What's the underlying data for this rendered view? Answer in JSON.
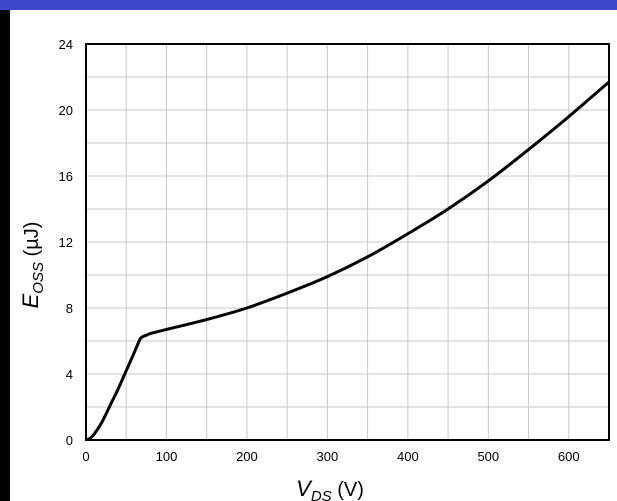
{
  "colors": {
    "header_band": "#3F48CC",
    "left_edge": "#000000",
    "grid": "#C8C8C8",
    "curve": "#000000",
    "frame": "#000000"
  },
  "chart_data": {
    "type": "line",
    "title": "",
    "xlabel": {
      "main": "V",
      "sub": "DS",
      "unit": " (V)"
    },
    "ylabel": {
      "main": "E",
      "sub": "OSS",
      "unit": " (µJ)"
    },
    "xlim": [
      0,
      650
    ],
    "ylim": [
      0,
      24
    ],
    "x_ticks": [
      0,
      100,
      200,
      300,
      400,
      500,
      600
    ],
    "y_ticks": [
      0,
      4,
      8,
      12,
      16,
      20,
      24
    ],
    "grid": true,
    "minor_grid_x_step": 50,
    "minor_grid_y_step": 2,
    "series": [
      {
        "x": [
          0,
          5,
          10,
          20,
          30,
          40,
          50,
          60,
          67,
          70,
          75,
          80,
          100,
          150,
          200,
          250,
          300,
          350,
          400,
          450,
          500,
          550,
          600,
          650
        ],
        "y": [
          0,
          0.1,
          0.35,
          1.1,
          2.1,
          3.1,
          4.2,
          5.3,
          6.1,
          6.25,
          6.35,
          6.45,
          6.7,
          7.3,
          8.0,
          8.9,
          9.9,
          11.1,
          12.5,
          14.0,
          15.7,
          17.6,
          19.6,
          21.7
        ]
      }
    ]
  }
}
